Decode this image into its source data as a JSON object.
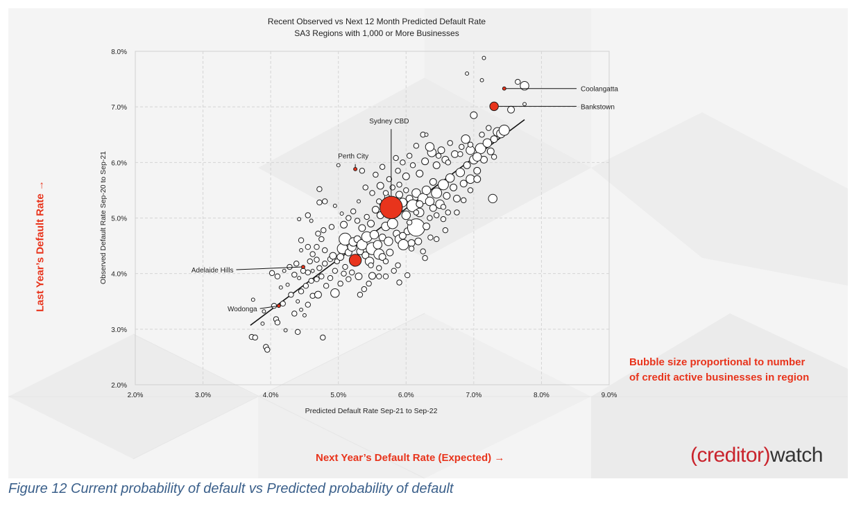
{
  "chart_data": {
    "type": "scatter",
    "title": "Recent Observed vs Next 12 Month Predicted Default Rate",
    "subtitle": "SA3 Regions with 1,000 or More Businesses",
    "xlabel": "Predicted Default Rate Sep-21 to Sep-22",
    "ylabel": "Observed Default Rate Sep-20 to Sep-21",
    "xlim": [
      2.0,
      9.0
    ],
    "ylim": [
      2.0,
      8.0
    ],
    "x_ticks": [
      "2.0%",
      "3.0%",
      "4.0%",
      "5.0%",
      "6.0%",
      "7.0%",
      "8.0%",
      "9.0%"
    ],
    "y_ticks": [
      "2.0%",
      "3.0%",
      "4.0%",
      "5.0%",
      "6.0%",
      "7.0%",
      "8.0%"
    ],
    "grid": true,
    "trendline": {
      "x": [
        3.7,
        7.75
      ],
      "y": [
        3.07,
        6.77
      ]
    },
    "highlight_color": "#e8341c",
    "highlighted": [
      {
        "label": "Coolangatta",
        "x": 7.45,
        "y": 7.33,
        "size": 1,
        "label_x": 8.58,
        "label_y": 7.33
      },
      {
        "label": "Bankstown",
        "x": 7.3,
        "y": 7.01,
        "size": 4,
        "label_x": 8.58,
        "label_y": 7.01
      },
      {
        "label": "Sydney CBD",
        "x": 5.78,
        "y": 5.19,
        "size": 12,
        "label_x": 5.75,
        "label_y": 6.7
      },
      {
        "label": "Perth City",
        "x": 5.25,
        "y": 5.88,
        "size": 1,
        "label_x": 5.22,
        "label_y": 6.07
      },
      {
        "label": "Adelaide Hills",
        "x": 4.48,
        "y": 4.12,
        "size": 1,
        "label_x": 3.45,
        "label_y": 4.07
      },
      {
        "label": "Wodonga",
        "x": 4.12,
        "y": 3.42,
        "size": 1,
        "label_x": 3.8,
        "label_y": 3.37
      },
      {
        "label": "",
        "x": 5.25,
        "y": 4.24,
        "size": 6,
        "label_x": null,
        "label_y": null
      }
    ],
    "points": [
      [
        3.72,
        2.86,
        2
      ],
      [
        3.77,
        2.85,
        2
      ],
      [
        3.93,
        2.68,
        2
      ],
      [
        3.95,
        2.63,
        2
      ],
      [
        3.88,
        3.1,
        1
      ],
      [
        4.08,
        3.18,
        2
      ],
      [
        4.1,
        3.12,
        2
      ],
      [
        4.22,
        2.98,
        1
      ],
      [
        4.4,
        2.95,
        2
      ],
      [
        4.77,
        2.85,
        2
      ],
      [
        3.74,
        3.53,
        1
      ],
      [
        3.9,
        3.32,
        1
      ],
      [
        4.05,
        3.42,
        2
      ],
      [
        4.18,
        3.46,
        2
      ],
      [
        4.35,
        3.28,
        2
      ],
      [
        4.45,
        3.35,
        1
      ],
      [
        4.5,
        3.25,
        1
      ],
      [
        4.4,
        3.5,
        1
      ],
      [
        4.55,
        3.44,
        2
      ],
      [
        4.62,
        3.6,
        2
      ],
      [
        4.7,
        3.62,
        3
      ],
      [
        4.3,
        3.62,
        2
      ],
      [
        4.25,
        3.8,
        1
      ],
      [
        4.15,
        3.75,
        1
      ],
      [
        4.35,
        3.98,
        2
      ],
      [
        4.42,
        3.92,
        1
      ],
      [
        4.45,
        3.68,
        2
      ],
      [
        4.52,
        3.78,
        2
      ],
      [
        4.6,
        3.87,
        2
      ],
      [
        4.68,
        3.9,
        2
      ],
      [
        4.75,
        3.95,
        2
      ],
      [
        4.82,
        3.78,
        2
      ],
      [
        4.88,
        3.92,
        2
      ],
      [
        4.95,
        3.65,
        4
      ],
      [
        5.03,
        3.82,
        2
      ],
      [
        5.08,
        4.0,
        2
      ],
      [
        5.15,
        3.9,
        2
      ],
      [
        5.3,
        3.95,
        3
      ],
      [
        5.38,
        3.72,
        2
      ],
      [
        5.45,
        3.82,
        2
      ],
      [
        5.5,
        3.96,
        3
      ],
      [
        5.6,
        3.95,
        2
      ],
      [
        5.7,
        3.95,
        2
      ],
      [
        5.9,
        3.84,
        2
      ],
      [
        6.02,
        3.97,
        2
      ],
      [
        4.02,
        4.01,
        2
      ],
      [
        4.1,
        3.95,
        2
      ],
      [
        4.2,
        4.05,
        1
      ],
      [
        4.28,
        4.12,
        2
      ],
      [
        4.38,
        4.18,
        2
      ],
      [
        4.48,
        4.05,
        2
      ],
      [
        4.55,
        4.02,
        2
      ],
      [
        4.62,
        4.05,
        1
      ],
      [
        4.72,
        4.1,
        2
      ],
      [
        4.8,
        4.18,
        2
      ],
      [
        4.88,
        4.26,
        2
      ],
      [
        4.92,
        4.32,
        3
      ],
      [
        4.98,
        4.22,
        2
      ],
      [
        5.03,
        4.3,
        3
      ],
      [
        5.06,
        4.45,
        5
      ],
      [
        5.1,
        4.62,
        6
      ],
      [
        5.15,
        4.38,
        3
      ],
      [
        5.2,
        4.48,
        4
      ],
      [
        5.22,
        4.57,
        4
      ],
      [
        5.28,
        4.62,
        3
      ],
      [
        5.32,
        4.4,
        3
      ],
      [
        5.35,
        4.52,
        5
      ],
      [
        5.4,
        4.33,
        3
      ],
      [
        5.42,
        4.66,
        5
      ],
      [
        5.46,
        4.22,
        4
      ],
      [
        5.5,
        4.45,
        6
      ],
      [
        5.53,
        4.7,
        4
      ],
      [
        5.58,
        4.52,
        4
      ],
      [
        5.6,
        4.35,
        5
      ],
      [
        5.65,
        4.65,
        3
      ],
      [
        5.7,
        4.85,
        4
      ],
      [
        5.74,
        4.58,
        4
      ],
      [
        5.76,
        4.38,
        3
      ],
      [
        5.8,
        4.9,
        5
      ],
      [
        5.86,
        4.72,
        3
      ],
      [
        5.9,
        4.62,
        4
      ],
      [
        5.96,
        4.52,
        5
      ],
      [
        6.02,
        4.76,
        3
      ],
      [
        6.08,
        4.55,
        3
      ],
      [
        6.15,
        4.83,
        9
      ],
      [
        6.18,
        4.58,
        3
      ],
      [
        6.25,
        4.4,
        2
      ],
      [
        6.3,
        4.85,
        3
      ],
      [
        6.36,
        4.65,
        2
      ],
      [
        6.45,
        4.62,
        2
      ],
      [
        6.58,
        4.78,
        2
      ],
      [
        4.45,
        4.6,
        2
      ],
      [
        4.55,
        4.48,
        2
      ],
      [
        4.62,
        4.35,
        2
      ],
      [
        4.68,
        4.48,
        2
      ],
      [
        4.75,
        4.62,
        2
      ],
      [
        4.8,
        4.42,
        2
      ],
      [
        4.78,
        4.78,
        2
      ],
      [
        4.9,
        4.84,
        2
      ],
      [
        5.08,
        4.88,
        3
      ],
      [
        5.15,
        5.0,
        2
      ],
      [
        5.22,
        5.12,
        2
      ],
      [
        5.28,
        4.95,
        2
      ],
      [
        5.35,
        4.82,
        3
      ],
      [
        5.42,
        5.02,
        2
      ],
      [
        5.48,
        4.9,
        3
      ],
      [
        5.55,
        5.15,
        3
      ],
      [
        5.62,
        5.05,
        3
      ],
      [
        5.66,
        5.25,
        3
      ],
      [
        5.72,
        5.38,
        2
      ],
      [
        5.78,
        5.32,
        3
      ],
      [
        5.85,
        5.12,
        5
      ],
      [
        5.9,
        5.42,
        3
      ],
      [
        5.95,
        5.28,
        4
      ],
      [
        6.0,
        5.05,
        4
      ],
      [
        6.05,
        5.35,
        3
      ],
      [
        6.1,
        5.22,
        6
      ],
      [
        6.15,
        5.45,
        4
      ],
      [
        6.2,
        5.1,
        4
      ],
      [
        6.25,
        5.35,
        5
      ],
      [
        6.3,
        5.5,
        4
      ],
      [
        6.35,
        5.3,
        4
      ],
      [
        6.4,
        5.65,
        3
      ],
      [
        6.45,
        5.45,
        5
      ],
      [
        6.5,
        5.25,
        4
      ],
      [
        6.55,
        5.6,
        5
      ],
      [
        6.6,
        5.4,
        3
      ],
      [
        6.65,
        5.72,
        4
      ],
      [
        6.7,
        5.55,
        3
      ],
      [
        6.75,
        5.35,
        3
      ],
      [
        6.8,
        5.82,
        4
      ],
      [
        6.85,
        5.62,
        3
      ],
      [
        6.9,
        5.95,
        3
      ],
      [
        6.95,
        5.7,
        4
      ],
      [
        7.0,
        6.05,
        4
      ],
      [
        7.05,
        5.85,
        3
      ],
      [
        7.1,
        6.25,
        5
      ],
      [
        7.15,
        6.05,
        3
      ],
      [
        7.2,
        6.35,
        4
      ],
      [
        7.25,
        6.2,
        3
      ],
      [
        7.3,
        6.42,
        3
      ],
      [
        7.35,
        6.55,
        4
      ],
      [
        7.4,
        6.52,
        4
      ],
      [
        7.45,
        6.58,
        5
      ],
      [
        7.3,
        6.1,
        2
      ],
      [
        7.28,
        5.35,
        4
      ],
      [
        7.05,
        5.7,
        3
      ],
      [
        6.95,
        5.5,
        2
      ],
      [
        6.85,
        5.32,
        2
      ],
      [
        6.75,
        5.1,
        2
      ],
      [
        6.55,
        5.2,
        2
      ],
      [
        6.45,
        5.05,
        2
      ],
      [
        6.35,
        5.0,
        2
      ],
      [
        6.15,
        5.1,
        2
      ],
      [
        6.0,
        5.5,
        2
      ],
      [
        5.9,
        5.6,
        2
      ],
      [
        5.8,
        5.55,
        2
      ],
      [
        5.7,
        5.45,
        2
      ],
      [
        5.6,
        5.3,
        2
      ],
      [
        5.5,
        5.45,
        2
      ],
      [
        5.4,
        5.55,
        2
      ],
      [
        5.3,
        5.3,
        1
      ],
      [
        5.62,
        5.58,
        3
      ],
      [
        5.75,
        5.7,
        2
      ],
      [
        5.88,
        5.85,
        2
      ],
      [
        6.0,
        5.75,
        3
      ],
      [
        6.1,
        5.95,
        2
      ],
      [
        6.2,
        5.8,
        3
      ],
      [
        6.28,
        6.02,
        3
      ],
      [
        6.38,
        6.18,
        4
      ],
      [
        6.45,
        5.95,
        3
      ],
      [
        6.52,
        6.22,
        3
      ],
      [
        6.58,
        6.05,
        3
      ],
      [
        6.65,
        6.35,
        2
      ],
      [
        6.72,
        6.15,
        3
      ],
      [
        6.82,
        6.28,
        2
      ],
      [
        6.88,
        6.42,
        4
      ],
      [
        6.95,
        6.22,
        4
      ],
      [
        7.05,
        6.1,
        4
      ],
      [
        7.12,
        6.5,
        2
      ],
      [
        7.22,
        6.62,
        2
      ],
      [
        7.0,
        6.85,
        3
      ],
      [
        6.95,
        6.32,
        2
      ],
      [
        6.8,
        6.15,
        2
      ],
      [
        6.62,
        6.0,
        2
      ],
      [
        6.48,
        6.12,
        2
      ],
      [
        6.35,
        6.28,
        4
      ],
      [
        6.25,
        6.5,
        2
      ],
      [
        6.15,
        6.3,
        2
      ],
      [
        6.05,
        6.12,
        2
      ],
      [
        5.95,
        6.0,
        2
      ],
      [
        5.85,
        6.08,
        2
      ],
      [
        5.65,
        5.92,
        2
      ],
      [
        5.55,
        5.78,
        2
      ],
      [
        5.35,
        5.85,
        2
      ],
      [
        5.0,
        5.95,
        1
      ],
      [
        4.72,
        5.52,
        2
      ],
      [
        4.72,
        5.28,
        2
      ],
      [
        4.8,
        5.3,
        2
      ],
      [
        4.95,
        5.22,
        1
      ],
      [
        5.05,
        5.08,
        1
      ],
      [
        4.42,
        4.98,
        1
      ],
      [
        4.55,
        5.05,
        2
      ],
      [
        4.6,
        4.95,
        1
      ],
      [
        4.7,
        4.72,
        2
      ],
      [
        4.45,
        4.42,
        1
      ],
      [
        4.58,
        4.22,
        2
      ],
      [
        4.68,
        4.25,
        2
      ],
      [
        4.95,
        4.05,
        2
      ],
      [
        5.1,
        4.12,
        2
      ],
      [
        5.2,
        4.02,
        2
      ],
      [
        5.32,
        3.62,
        2
      ],
      [
        5.48,
        4.15,
        2
      ],
      [
        5.6,
        4.1,
        2
      ],
      [
        5.65,
        4.3,
        3
      ],
      [
        5.7,
        4.22,
        2
      ],
      [
        5.82,
        4.05,
        2
      ],
      [
        5.88,
        4.15,
        2
      ],
      [
        6.08,
        4.45,
        2
      ],
      [
        6.28,
        4.28,
        2
      ],
      [
        5.95,
        4.68,
        3
      ],
      [
        6.05,
        4.92,
        2
      ],
      [
        6.2,
        5.25,
        3
      ],
      [
        6.4,
        5.18,
        3
      ],
      [
        6.62,
        5.1,
        2
      ],
      [
        6.55,
        4.98,
        2
      ],
      [
        6.9,
        7.6,
        1
      ],
      [
        7.15,
        7.88,
        1
      ],
      [
        7.12,
        7.48,
        1
      ],
      [
        7.65,
        7.45,
        2
      ],
      [
        7.75,
        7.38,
        4
      ],
      [
        7.55,
        6.95,
        3
      ],
      [
        7.75,
        7.05,
        1
      ],
      [
        6.3,
        6.5,
        1
      ]
    ]
  },
  "annotations": {
    "side_label": "Last Year’s  Default Rate →",
    "bottom_label": "Next Year’s Default Rate (Expected) →",
    "size_note_line1": "Bubble size proportional to number",
    "size_note_line2": "of credit active businesses in region"
  },
  "logo": {
    "open": "(creditor)",
    "rest": "watch"
  },
  "caption": "Figure 12 Current probability of default vs Predicted probability of default"
}
